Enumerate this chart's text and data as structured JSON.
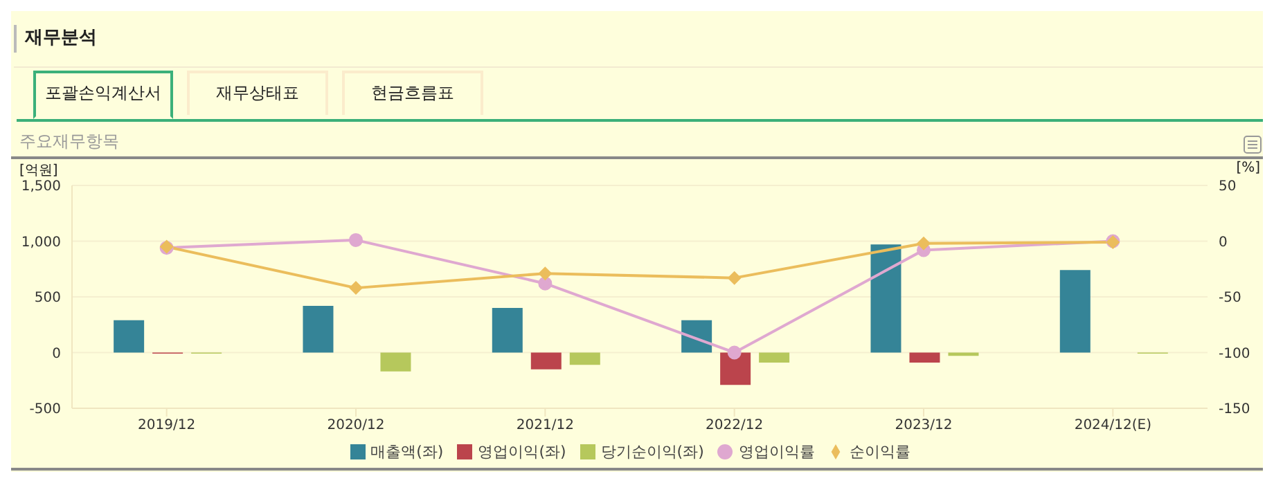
{
  "chart_data": {
    "type": "bar",
    "title": "재무분석",
    "subtitle": "주요재무항목",
    "annotations": [
      "포괄손익계산서",
      "재무상태표",
      "현금흐름표"
    ],
    "ylabel": "[억원]",
    "y2label": "[%]",
    "categories": [
      "2019/12",
      "2020/12",
      "2021/12",
      "2022/12",
      "2023/12",
      "2024/12(E)"
    ],
    "series": [
      {
        "name": "매출액(좌)",
        "color": "#358497",
        "values": [
          290,
          420,
          400,
          290,
          970,
          740
        ]
      },
      {
        "name": "영업이익(좌)",
        "color": "#bb444c",
        "values": [
          -10,
          null,
          -150,
          -290,
          -90,
          null
        ]
      },
      {
        "name": "당기순이익(좌)",
        "color": "#b6c85c",
        "values": [
          -10,
          -170,
          -110,
          -90,
          -30,
          -10
        ]
      },
      {
        "name": "영업이익률",
        "type": "line",
        "axis": "y2",
        "marker": "circle",
        "color": "#dfa8d0",
        "values": [
          -6,
          1,
          -38,
          -100,
          -8,
          0
        ]
      },
      {
        "name": "순이익률",
        "type": "line",
        "axis": "y2",
        "marker": "diamond",
        "color": "#ebbd5c",
        "values": [
          -5,
          -42,
          -29,
          -33,
          -2,
          -1
        ]
      }
    ],
    "ylim": [
      -500,
      1500
    ],
    "yticks": [
      {
        "value": -500,
        "label": "-500"
      },
      {
        "value": 0,
        "label": "0"
      },
      {
        "value": 500,
        "label": "500"
      },
      {
        "value": 1000,
        "label": "1,000"
      },
      {
        "value": 1500,
        "label": "1,500"
      }
    ],
    "y2lim": [
      -150,
      50
    ],
    "y2ticks": [
      -150,
      -100,
      -50,
      0,
      50
    ],
    "grid": "y",
    "legend": "bottom"
  }
}
